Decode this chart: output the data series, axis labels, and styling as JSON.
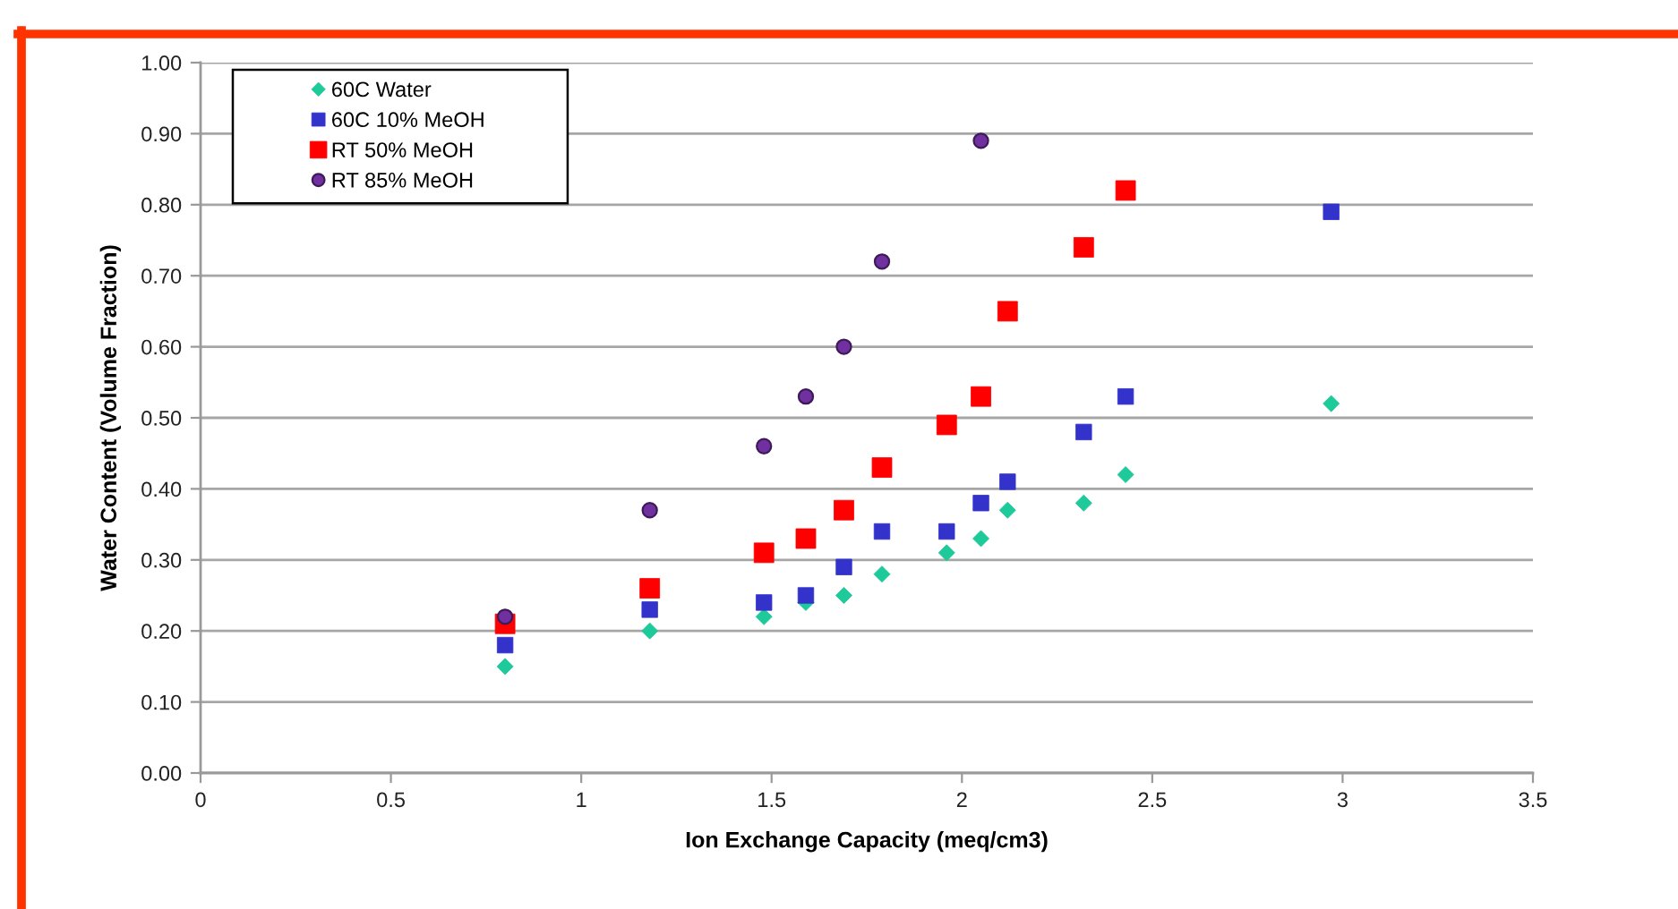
{
  "chart_data": {
    "type": "scatter",
    "xlabel": "Ion Exchange Capacity (meq/cm3)",
    "ylabel": "Water Content (Volume Fraction)",
    "series": [
      {
        "name": "60C Water",
        "color": "#1ec99a",
        "marker": "diamond",
        "x": [
          0.8,
          1.18,
          1.48,
          1.59,
          1.69,
          1.79,
          1.96,
          2.05,
          2.12,
          2.32,
          2.43,
          2.97
        ],
        "values": [
          0.15,
          0.2,
          0.22,
          0.24,
          0.25,
          0.28,
          0.31,
          0.33,
          0.37,
          0.38,
          0.42,
          0.52
        ]
      },
      {
        "name": "60C 10% MeOH",
        "color": "#3333cc",
        "marker": "square",
        "x": [
          0.8,
          1.18,
          1.48,
          1.59,
          1.69,
          1.79,
          1.96,
          2.05,
          2.12,
          2.32,
          2.43,
          2.97
        ],
        "values": [
          0.18,
          0.23,
          0.24,
          0.25,
          0.29,
          0.34,
          0.34,
          0.38,
          0.41,
          0.48,
          0.53,
          0.79
        ]
      },
      {
        "name": "RT 50% MeOH",
        "color": "#ff0000",
        "marker": "square",
        "x": [
          0.8,
          1.18,
          1.48,
          1.59,
          1.69,
          1.79,
          1.96,
          2.05,
          2.12,
          2.32,
          2.43
        ],
        "values": [
          0.21,
          0.26,
          0.31,
          0.33,
          0.37,
          0.43,
          0.49,
          0.53,
          0.65,
          0.74,
          0.82
        ]
      },
      {
        "name": "RT 85% MeOH",
        "color": "#7030a0",
        "marker": "circle",
        "x": [
          0.8,
          1.18,
          1.48,
          1.59,
          1.69,
          1.79,
          2.05
        ],
        "values": [
          0.22,
          0.37,
          0.46,
          0.53,
          0.6,
          0.72,
          0.89
        ]
      }
    ],
    "xlim": [
      0,
      3.5
    ],
    "xticks": [
      0,
      0.5,
      1,
      1.5,
      2,
      2.5,
      3,
      3.5
    ],
    "ylim": [
      0,
      1
    ],
    "yticks": [
      {
        "value": 0,
        "label": "0.00"
      },
      {
        "value": 0.1,
        "label": "0.10"
      },
      {
        "value": 0.2,
        "label": "0.20"
      },
      {
        "value": 0.3,
        "label": "0.30"
      },
      {
        "value": 0.4,
        "label": "0.40"
      },
      {
        "value": 0.5,
        "label": "0.50"
      },
      {
        "value": 0.6,
        "label": "0.60"
      },
      {
        "value": 0.7,
        "label": "0.70"
      },
      {
        "value": 0.8,
        "label": "0.80"
      },
      {
        "value": 0.9,
        "label": "0.90"
      },
      {
        "value": 1,
        "label": "1.00"
      }
    ],
    "grid": "y",
    "legend": "top left"
  }
}
